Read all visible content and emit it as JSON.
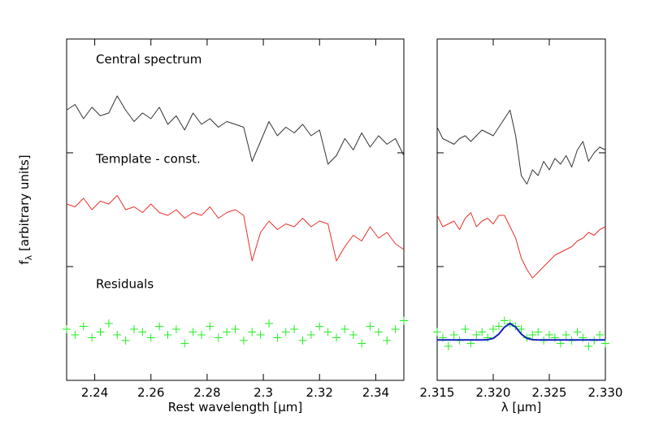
{
  "chart_data": [
    {
      "type": "line",
      "xlabel": "Rest wavelength [µm]",
      "ylabel": {
        "main": "f",
        "sub": "λ",
        "rest": " [arbitrary units]"
      },
      "xlim": [
        2.23,
        2.35
      ],
      "xticks": [
        2.24,
        2.26,
        2.28,
        2.3,
        2.32,
        2.34
      ],
      "ylim": [
        0,
        6
      ],
      "yticks": [
        2,
        4
      ],
      "x": [
        2.23,
        2.233,
        2.236,
        2.239,
        2.242,
        2.245,
        2.248,
        2.251,
        2.254,
        2.257,
        2.26,
        2.263,
        2.266,
        2.269,
        2.272,
        2.275,
        2.278,
        2.281,
        2.284,
        2.287,
        2.29,
        2.293,
        2.296,
        2.299,
        2.302,
        2.305,
        2.308,
        2.311,
        2.314,
        2.317,
        2.32,
        2.323,
        2.326,
        2.329,
        2.332,
        2.335,
        2.338,
        2.341,
        2.344,
        2.347,
        2.35
      ],
      "series": [
        {
          "name": "Central spectrum",
          "color": "#333333",
          "marker": "none",
          "values": [
            4.75,
            4.85,
            4.6,
            4.8,
            4.65,
            4.7,
            5.0,
            4.75,
            4.55,
            4.7,
            4.6,
            4.8,
            4.5,
            4.65,
            4.4,
            4.7,
            4.5,
            4.6,
            4.45,
            4.55,
            4.5,
            4.45,
            3.85,
            4.2,
            4.55,
            4.3,
            4.45,
            4.35,
            4.5,
            4.3,
            4.4,
            3.8,
            3.95,
            4.25,
            4.05,
            4.35,
            4.1,
            4.3,
            4.15,
            4.25,
            3.95
          ]
        },
        {
          "name": "Template - const.",
          "color": "#e8302a",
          "marker": "none",
          "values": [
            3.1,
            3.05,
            3.2,
            3.0,
            3.15,
            3.1,
            3.25,
            3.0,
            3.05,
            2.95,
            3.1,
            2.95,
            2.9,
            3.0,
            2.85,
            2.95,
            2.9,
            3.05,
            2.85,
            2.95,
            3.0,
            2.9,
            2.1,
            2.6,
            2.8,
            2.65,
            2.75,
            2.7,
            2.85,
            2.7,
            2.8,
            2.75,
            2.1,
            2.35,
            2.55,
            2.45,
            2.7,
            2.5,
            2.6,
            2.4,
            2.3
          ]
        },
        {
          "name": "Residuals",
          "color": "#22ee22",
          "marker": "plus",
          "values": [
            0.9,
            0.8,
            0.95,
            0.75,
            0.85,
            1.0,
            0.8,
            0.7,
            0.9,
            0.85,
            0.75,
            0.95,
            0.8,
            0.9,
            0.65,
            0.85,
            0.8,
            0.95,
            0.75,
            0.85,
            0.9,
            0.7,
            0.85,
            0.8,
            1.0,
            0.75,
            0.85,
            0.9,
            0.7,
            0.8,
            0.95,
            0.85,
            0.75,
            0.9,
            0.8,
            0.65,
            0.95,
            0.85,
            0.7,
            0.9,
            1.05
          ]
        }
      ]
    },
    {
      "type": "line",
      "xlabel": "λ [µm]",
      "xlim": [
        2.315,
        2.33
      ],
      "xticks": [
        2.315,
        {
          "value": 2.32,
          "label": "2.320"
        },
        2.325,
        {
          "value": 2.33,
          "label": "2.330"
        }
      ],
      "ylim": [
        0,
        6
      ],
      "yticks": [
        2,
        4
      ],
      "x": [
        2.315,
        2.3155,
        2.316,
        2.3165,
        2.317,
        2.3175,
        2.318,
        2.3185,
        2.319,
        2.3195,
        2.32,
        2.3205,
        2.321,
        2.3215,
        2.322,
        2.3225,
        2.323,
        2.3235,
        2.324,
        2.3245,
        2.325,
        2.3255,
        2.326,
        2.3265,
        2.327,
        2.3275,
        2.328,
        2.3285,
        2.329,
        2.3295,
        2.33
      ],
      "series": [
        {
          "color": "#333333",
          "marker": "none",
          "values": [
            4.45,
            4.25,
            4.2,
            4.15,
            4.25,
            4.3,
            4.2,
            4.3,
            4.4,
            4.35,
            4.3,
            4.45,
            4.6,
            4.75,
            4.3,
            3.6,
            3.45,
            3.7,
            3.6,
            3.85,
            3.7,
            3.9,
            3.8,
            3.95,
            3.75,
            4.05,
            4.2,
            3.85,
            4.0,
            4.1,
            4.05
          ]
        },
        {
          "color": "#e8302a",
          "marker": "none",
          "values": [
            2.9,
            2.7,
            2.75,
            2.8,
            2.65,
            2.85,
            2.95,
            2.7,
            2.8,
            2.85,
            2.75,
            2.9,
            2.9,
            2.7,
            2.5,
            2.15,
            1.95,
            1.8,
            1.9,
            2.0,
            2.1,
            2.2,
            2.25,
            2.3,
            2.35,
            2.45,
            2.5,
            2.6,
            2.55,
            2.65,
            2.7
          ]
        },
        {
          "color": "#22ee22",
          "marker": "plus",
          "values": [
            0.85,
            0.75,
            0.6,
            0.8,
            0.7,
            0.9,
            0.65,
            0.8,
            0.85,
            0.75,
            0.9,
            0.95,
            1.05,
            1.0,
            0.95,
            0.9,
            0.75,
            0.8,
            0.85,
            0.7,
            0.8,
            0.75,
            0.65,
            0.8,
            0.7,
            0.85,
            0.75,
            0.6,
            0.7,
            0.8,
            0.65
          ]
        },
        {
          "color": "#1020c0",
          "marker": "none",
          "width": 2,
          "values": [
            0.71,
            0.71,
            0.71,
            0.71,
            0.71,
            0.71,
            0.71,
            0.71,
            0.71,
            0.715,
            0.739,
            0.814,
            0.935,
            1.0,
            0.935,
            0.814,
            0.739,
            0.715,
            0.71,
            0.71,
            0.71,
            0.71,
            0.71,
            0.71,
            0.71,
            0.71,
            0.71,
            0.71,
            0.71,
            0.71,
            0.71
          ]
        }
      ]
    }
  ]
}
